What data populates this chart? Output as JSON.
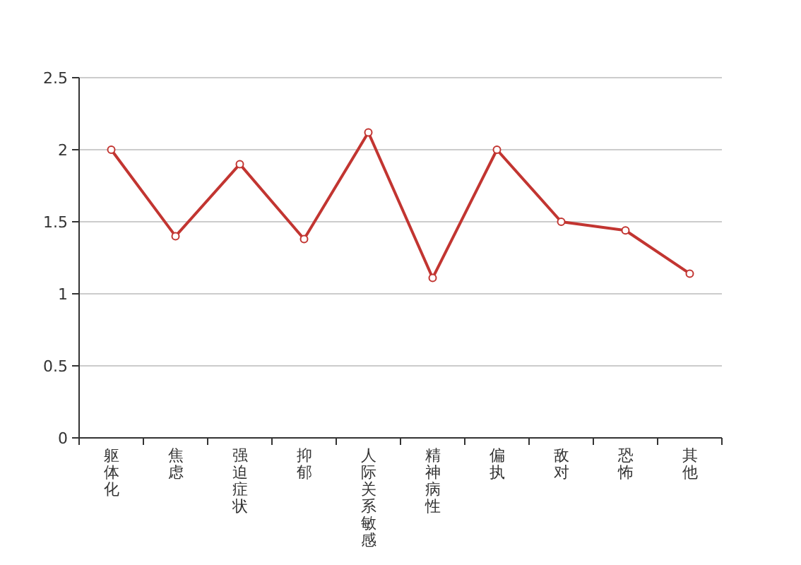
{
  "chart_data": {
    "type": "line",
    "categories": [
      "躯体化",
      "焦虑",
      "强迫症状",
      "抑郁",
      "人际关系敏感",
      "精神病性",
      "偏执",
      "敌对",
      "恐怖",
      "其他"
    ],
    "series": [
      {
        "color": "#c23531",
        "values": [
          2.0,
          1.4,
          1.9,
          1.38,
          2.12,
          1.11,
          2.0,
          1.5,
          1.44,
          1.14
        ]
      }
    ],
    "ylim": [
      0,
      2.5
    ],
    "yticks": [
      0,
      0.5,
      1,
      1.5,
      2,
      2.5
    ],
    "grid": "y",
    "marker": "circle",
    "line_style": "solid"
  }
}
